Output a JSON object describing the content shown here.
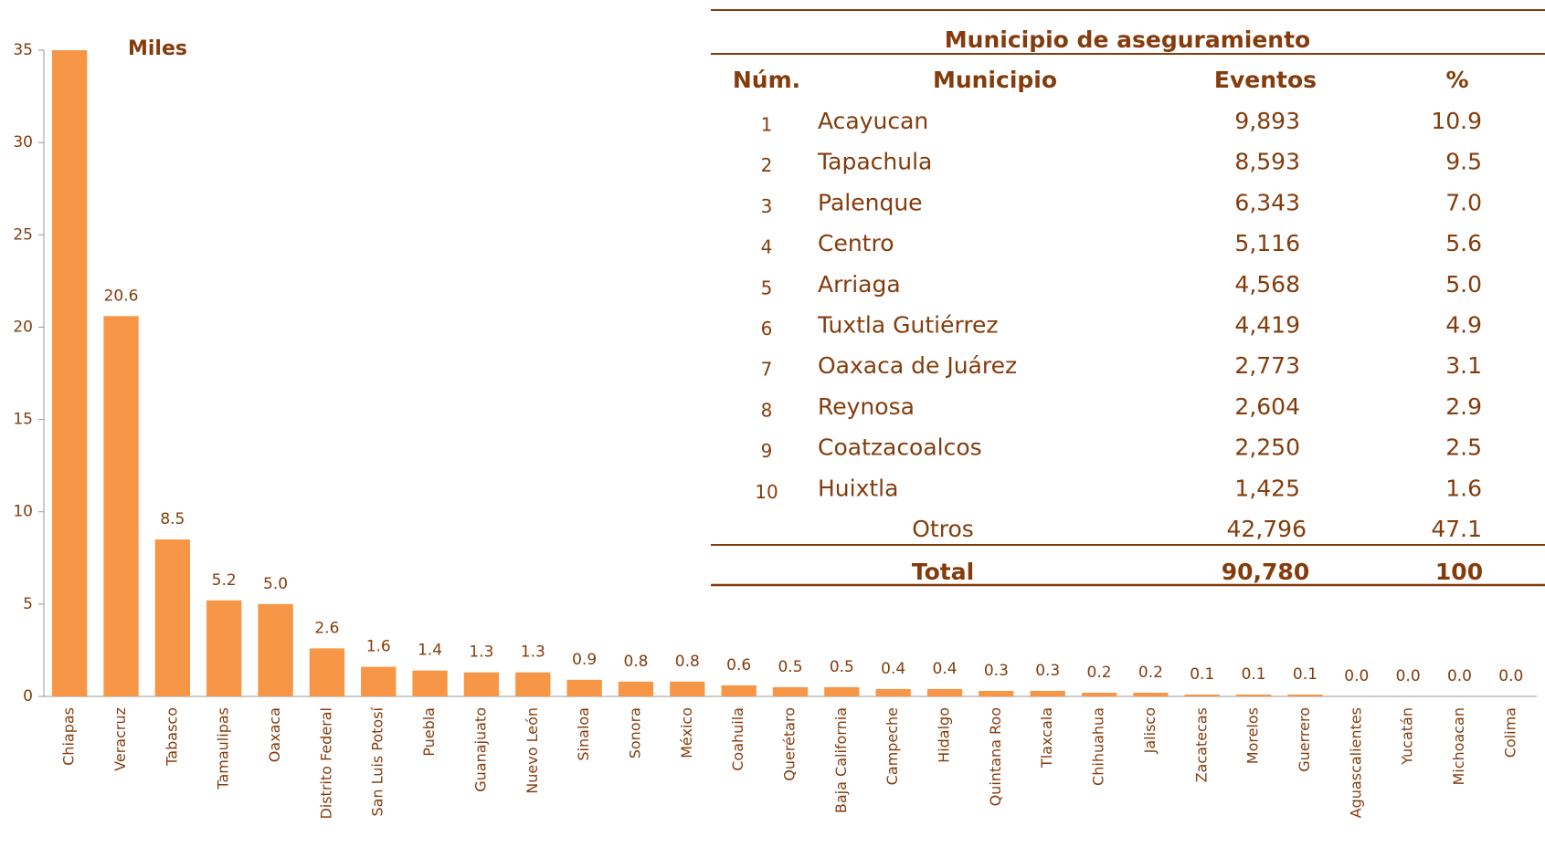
{
  "chart_data": {
    "type": "bar",
    "y_label": "Miles",
    "categories": [
      "Chiapas",
      "Veracruz",
      "Tabasco",
      "Tamaulipas",
      "Oaxaca",
      "Distrito Federal",
      "San Luis Potosí",
      "Puebla",
      "Guanajuato",
      "Nuevo León",
      "Sinaloa",
      "Sonora",
      "México",
      "Coahuila",
      "Querétaro",
      "Baja California",
      "Campeche",
      "Hidalgo",
      "Quintana Roo",
      "Tlaxcala",
      "Chihuahua",
      "Jalisco",
      "Zacatecas",
      "Morelos",
      "Guerrero",
      "Aguascalientes",
      "Yucatán",
      "Michoacan",
      "Colima"
    ],
    "values": [
      35,
      20.6,
      8.5,
      5.2,
      5.0,
      2.6,
      1.6,
      1.4,
      1.3,
      1.3,
      0.9,
      0.8,
      0.8,
      0.6,
      0.5,
      0.5,
      0.4,
      0.4,
      0.3,
      0.3,
      0.2,
      0.2,
      0.1,
      0.1,
      0.1,
      0.0,
      0.0,
      0.0,
      0.0
    ],
    "value_labels": [
      null,
      "20.6",
      "8.5",
      "5.2",
      "5.0",
      "2.6",
      "1.6",
      "1.4",
      "1.3",
      "1.3",
      "0.9",
      "0.8",
      "0.8",
      "0.6",
      "0.5",
      "0.5",
      "0.4",
      "0.4",
      "0.3",
      "0.3",
      "0.2",
      "0.2",
      "0.1",
      "0.1",
      "0.1",
      "0.0",
      "0.0",
      "0.0",
      "0.0"
    ],
    "color": "#f79646",
    "ylim": [
      0,
      35
    ],
    "yticks": [
      0,
      5,
      10,
      15,
      20,
      25,
      30,
      35
    ],
    "grid": false
  },
  "table": {
    "title": "Municipio de aseguramiento",
    "columns": [
      "Núm.",
      "Municipio",
      "Eventos",
      "%"
    ],
    "rows": [
      [
        "1",
        "Acayucan",
        "9,893",
        "10.9"
      ],
      [
        "2",
        "Tapachula",
        "8,593",
        "9.5"
      ],
      [
        "3",
        "Palenque",
        "6,343",
        "7.0"
      ],
      [
        "4",
        "Centro",
        "5,116",
        "5.6"
      ],
      [
        "5",
        "Arriaga",
        "4,568",
        "5.0"
      ],
      [
        "6",
        "Tuxtla Gutiérrez",
        "4,419",
        "4.9"
      ],
      [
        "7",
        "Oaxaca de Juárez",
        "2,773",
        "3.1"
      ],
      [
        "8",
        "Reynosa",
        "2,604",
        "2.9"
      ],
      [
        "9",
        "Coatzacoalcos",
        "2,250",
        "2.5"
      ],
      [
        "10",
        "Huixtla",
        "1,425",
        "1.6"
      ]
    ],
    "other": [
      "Otros",
      "42,796",
      "47.1"
    ],
    "total": [
      "Total",
      "90,780",
      "100"
    ]
  }
}
